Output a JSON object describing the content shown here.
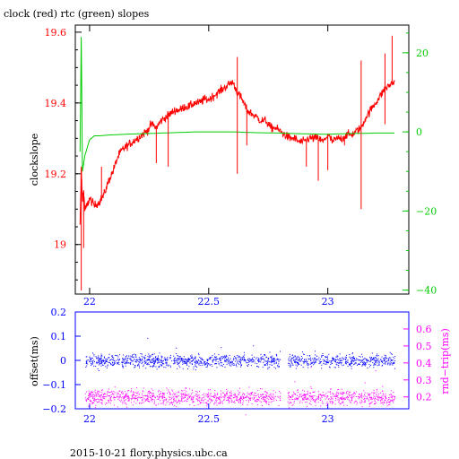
{
  "header": {
    "title": "clock (red) rtc (green) slopes"
  },
  "footer": {
    "caption": "2015-10-21 flory.physics.ubc.ca"
  },
  "colors": {
    "clock": "#ff0000",
    "rtc": "#00cc00",
    "offset": "#0000ff",
    "rndtrip": "#ff00ff",
    "axis_bottom": "#0000ff"
  },
  "chart_data": [
    {
      "type": "line",
      "title": "clock (red) rtc (green) slopes",
      "ylabel": "clockslope",
      "ylim": [
        18.86,
        19.62
      ],
      "yticks": [
        19,
        19.2,
        19.4,
        19.6
      ],
      "ytick_labels": [
        "19",
        "19.2",
        "19.4",
        "19.6"
      ],
      "y2lim": [
        -41,
        27
      ],
      "y2ticks": [
        -40,
        -20,
        0,
        20
      ],
      "y2tick_labels": [
        "−40",
        "−20",
        "0",
        "20"
      ],
      "xlim": [
        21.94,
        23.34
      ],
      "xticks": [
        22,
        22.5,
        23
      ],
      "xtick_labels": [
        "22",
        "22.5",
        "23"
      ],
      "grid": false,
      "series": [
        {
          "name": "clock",
          "axis": "left",
          "x": [
            21.96,
            21.965,
            21.97,
            21.975,
            21.98,
            21.99,
            22.0,
            22.02,
            22.04,
            22.06,
            22.08,
            22.1,
            22.12,
            22.14,
            22.16,
            22.18,
            22.2,
            22.22,
            22.24,
            22.26,
            22.28,
            22.3,
            22.32,
            22.34,
            22.36,
            22.38,
            22.4,
            22.42,
            22.44,
            22.46,
            22.48,
            22.5,
            22.52,
            22.54,
            22.56,
            22.58,
            22.6,
            22.62,
            22.64,
            22.66,
            22.68,
            22.7,
            22.72,
            22.74,
            22.76,
            22.78,
            22.8,
            22.82,
            22.84,
            22.86,
            22.88,
            22.9,
            22.92,
            22.94,
            22.96,
            22.98,
            23.0,
            23.02,
            23.04,
            23.06,
            23.08,
            23.1,
            23.12,
            23.14,
            23.16,
            23.18,
            23.2,
            23.22,
            23.24,
            23.26,
            23.28
          ],
          "y": [
            19.05,
            19.22,
            19.12,
            19.15,
            19.1,
            19.11,
            19.13,
            19.11,
            19.12,
            19.14,
            19.18,
            19.21,
            19.25,
            19.27,
            19.28,
            19.29,
            19.3,
            19.31,
            19.32,
            19.34,
            19.33,
            19.35,
            19.36,
            19.37,
            19.38,
            19.38,
            19.39,
            19.39,
            19.4,
            19.4,
            19.41,
            19.41,
            19.42,
            19.43,
            19.44,
            19.45,
            19.46,
            19.43,
            19.41,
            19.38,
            19.37,
            19.36,
            19.35,
            19.35,
            19.33,
            19.33,
            19.32,
            19.31,
            19.3,
            19.3,
            19.29,
            19.29,
            19.3,
            19.3,
            19.3,
            19.29,
            19.31,
            19.29,
            19.3,
            19.3,
            19.31,
            19.31,
            19.32,
            19.33,
            19.36,
            19.38,
            19.4,
            19.42,
            19.44,
            19.45,
            19.46
          ]
        },
        {
          "name": "rtc",
          "axis": "right",
          "x": [
            21.96,
            21.965,
            21.97,
            21.975,
            21.98,
            21.99,
            22.0,
            22.02,
            22.04,
            22.08,
            22.15,
            22.25,
            22.35,
            22.45,
            22.5,
            22.6,
            22.7,
            22.8,
            22.9,
            23.0,
            23.1,
            23.2,
            23.28
          ],
          "y": [
            -5,
            24,
            -10,
            -8,
            -6,
            -4,
            -2,
            -1,
            -1,
            -0.8,
            -0.6,
            -0.4,
            -0.2,
            0,
            0,
            0,
            -0.2,
            -0.3,
            -0.5,
            -0.6,
            -0.4,
            -0.3,
            -0.3
          ]
        }
      ]
    },
    {
      "type": "scatter",
      "ylabel": "offset(ms)",
      "ylim": [
        -0.2,
        0.2
      ],
      "yticks": [
        -0.2,
        -0.1,
        0,
        0.1,
        0.2
      ],
      "ytick_labels": [
        "−0.2",
        "−0.1",
        "0",
        "0.1",
        "0.2"
      ],
      "y2label": "rnd−trip(ms)",
      "y2lim": [
        0.13,
        0.7
      ],
      "y2ticks": [
        0.2,
        0.3,
        0.4,
        0.5,
        0.6
      ],
      "y2tick_labels": [
        "0.2",
        "0.3",
        "0.4",
        "0.5",
        "0.6"
      ],
      "xlim": [
        21.94,
        23.34
      ],
      "xticks": [
        22,
        22.5,
        23
      ],
      "xtick_labels": [
        "22",
        "22.5",
        "23"
      ],
      "grid": false,
      "series": [
        {
          "name": "offset",
          "axis": "left",
          "x_range": [
            21.98,
            23.28
          ],
          "gap": [
            22.8,
            22.83
          ],
          "center": 0.0,
          "spread": 0.013
        },
        {
          "name": "rnd-trip",
          "axis": "right",
          "x_range": [
            21.98,
            23.28
          ],
          "gap": [
            22.8,
            22.83
          ],
          "center": 0.2,
          "spread": 0.022
        }
      ]
    }
  ]
}
